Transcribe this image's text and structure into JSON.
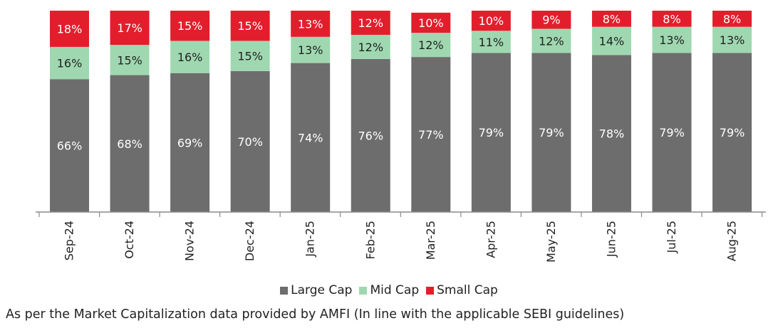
{
  "chart_data": {
    "type": "bar",
    "stacked": true,
    "categories": [
      "Sep-24",
      "Oct-24",
      "Nov-24",
      "Dec-24",
      "Jan-25",
      "Feb-25",
      "Mar-25",
      "Apr-25",
      "May-25",
      "Jun-25",
      "Jul-25",
      "Aug-25"
    ],
    "series": [
      {
        "name": "Large Cap",
        "color": "#6d6d6d",
        "label_color": "#ffffff",
        "values": [
          66,
          68,
          69,
          70,
          74,
          76,
          77,
          79,
          79,
          78,
          79,
          79
        ]
      },
      {
        "name": "Mid Cap",
        "color": "#9fd8b0",
        "label_color": "#222222",
        "values": [
          16,
          15,
          16,
          15,
          13,
          12,
          12,
          11,
          12,
          14,
          13,
          13
        ]
      },
      {
        "name": "Small Cap",
        "color": "#e31e2c",
        "label_color": "#ffffff",
        "values": [
          18,
          17,
          15,
          15,
          13,
          12,
          10,
          10,
          9,
          8,
          8,
          8
        ]
      }
    ],
    "ylim": [
      0,
      100
    ],
    "value_suffix": "%",
    "legend_position": "bottom",
    "grid": false
  },
  "footnote": "As per the Market Capitalization data provided by AMFI (In line with the applicable SEBI guidelines)"
}
